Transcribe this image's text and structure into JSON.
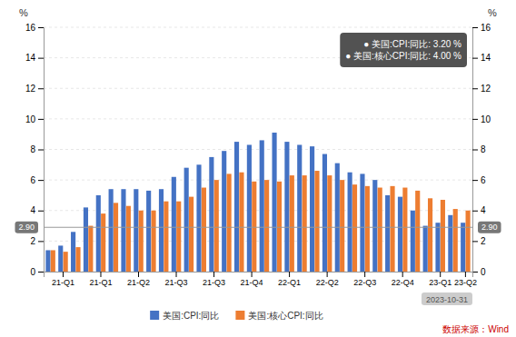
{
  "chart_data": {
    "type": "bar",
    "categories": [
      null,
      "21-Q1",
      null,
      null,
      "21-Q1",
      null,
      null,
      "21-Q2",
      null,
      null,
      "21-Q3",
      null,
      null,
      "21-Q3",
      null,
      null,
      "21-Q4",
      null,
      null,
      "22-Q1",
      null,
      null,
      "22-Q2",
      null,
      null,
      "22-Q3",
      null,
      null,
      "22-Q4",
      null,
      null,
      "23-Q1",
      null,
      "23-Q2"
    ],
    "series": [
      {
        "name": "美国:CPI:同比",
        "color": "#4472c4",
        "values": [
          1.4,
          1.7,
          2.6,
          4.2,
          5.0,
          5.4,
          5.4,
          5.4,
          5.3,
          5.4,
          6.2,
          6.8,
          7.0,
          7.5,
          7.9,
          8.5,
          8.3,
          8.6,
          9.1,
          8.5,
          8.3,
          8.2,
          7.7,
          7.1,
          6.5,
          6.4,
          6.0,
          5.0,
          4.9,
          4.0,
          3.0,
          3.2,
          3.7,
          3.2
        ]
      },
      {
        "name": "美国:核心CPI:同比",
        "color": "#ed7d31",
        "values": [
          1.4,
          1.3,
          1.6,
          3.0,
          3.8,
          4.5,
          4.3,
          4.0,
          4.0,
          4.6,
          4.6,
          4.9,
          5.5,
          6.0,
          6.4,
          6.5,
          5.9,
          6.0,
          5.9,
          6.3,
          6.3,
          6.6,
          6.3,
          6.0,
          5.7,
          5.6,
          5.5,
          5.6,
          5.5,
          5.3,
          4.8,
          4.7,
          4.1,
          4.0
        ]
      }
    ],
    "ylabel": "%",
    "y2label": "%",
    "ylim": [
      0,
      16
    ],
    "yticks": [
      0,
      2,
      4,
      6,
      8,
      10,
      12,
      14,
      16
    ],
    "y2lim": [
      0,
      16
    ],
    "y2ticks": [
      0,
      2,
      4,
      6,
      8,
      10,
      12,
      14,
      16
    ],
    "grid": true,
    "legend": "bottom",
    "reference_lines": [
      {
        "y": 2.9,
        "label": "2.90"
      }
    ],
    "tooltip": [
      "● 美国:CPI:同比: 3.20 %",
      "● 美国:核心CPI:同比: 4.00 %"
    ],
    "date": "2023-10-31",
    "source": "数据来源：Wind"
  }
}
